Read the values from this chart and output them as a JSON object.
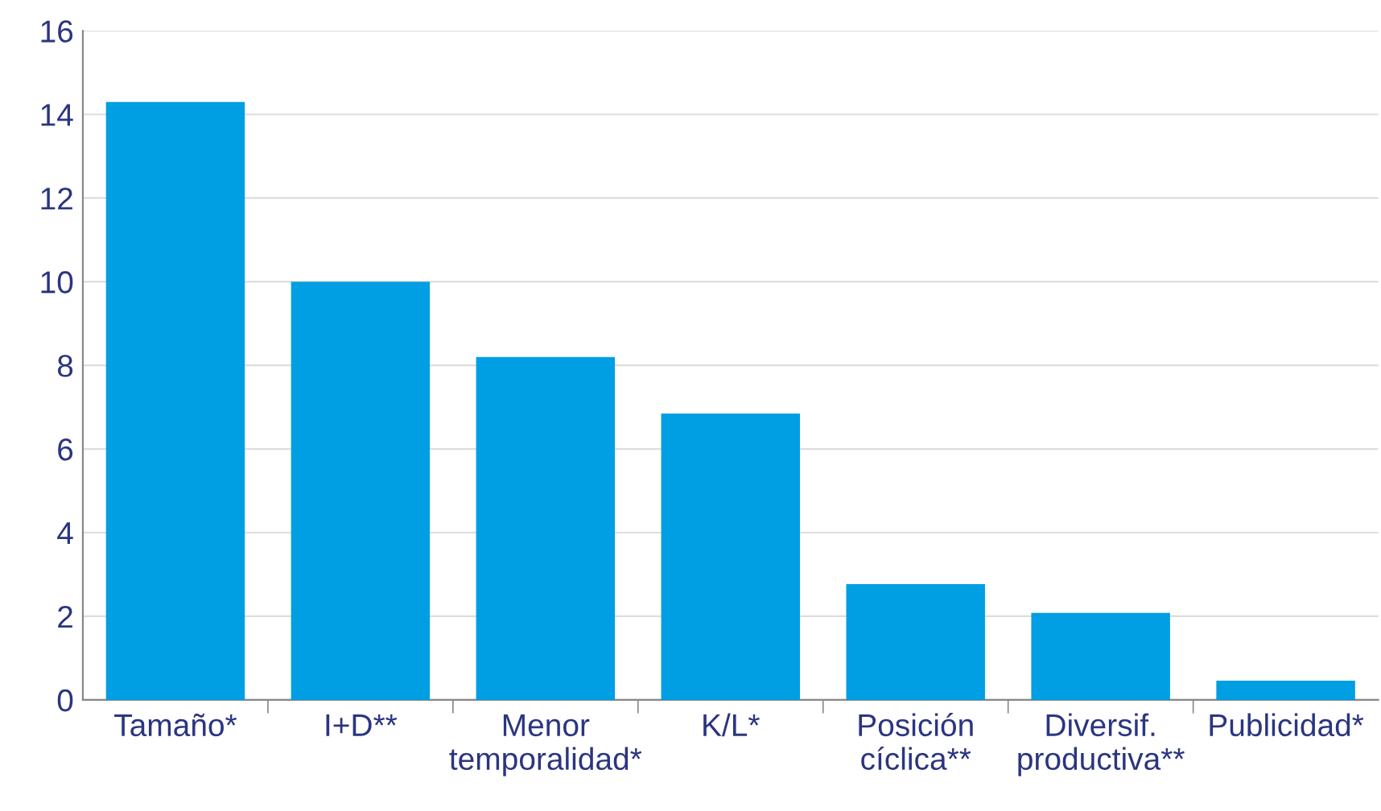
{
  "chart_data": {
    "type": "bar",
    "categories": [
      "Tamaño*",
      "I+D**",
      "Menor\ntemporalidad*",
      "K/L*",
      "Posición\ncíclica**",
      "Diversif.\nproductiva**",
      "Publicidad*"
    ],
    "values": [
      14.3,
      10.0,
      8.2,
      6.85,
      2.77,
      2.08,
      0.46
    ],
    "color": "#009ee2",
    "ylim": [
      0,
      16
    ],
    "yticks": [
      0,
      2,
      4,
      6,
      8,
      10,
      12,
      14,
      16
    ],
    "grid": "y"
  }
}
